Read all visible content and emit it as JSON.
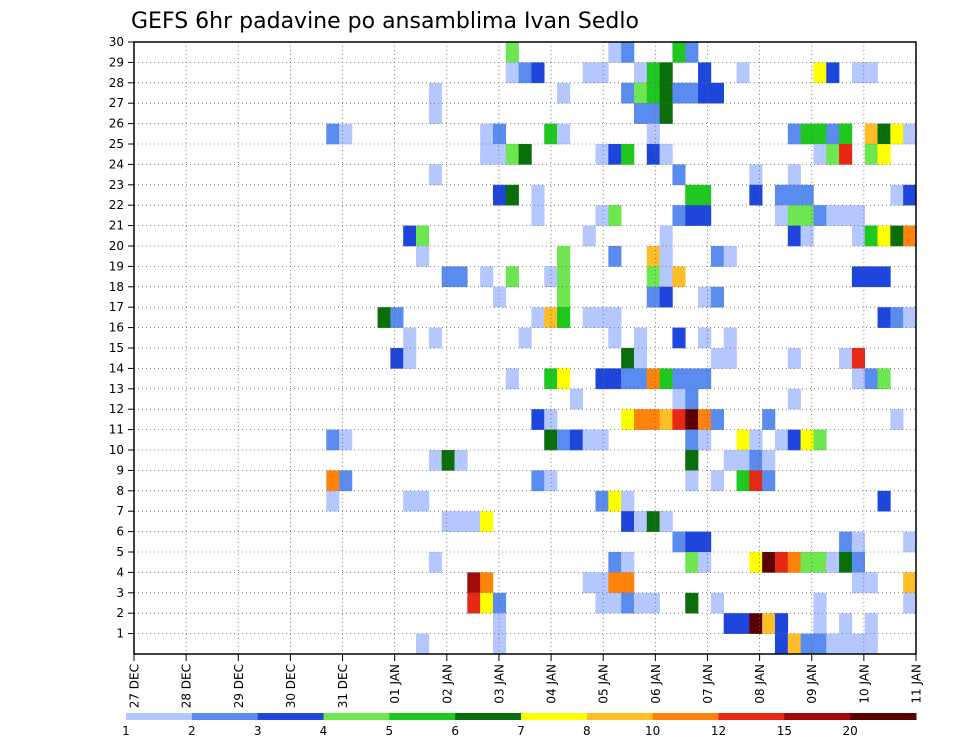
{
  "chart_data": {
    "type": "heatmap",
    "title": "GEFS 6hr padavine po ansamblima Ivan Sedlo",
    "xlabel": "",
    "ylabel": "",
    "x_ticks": [
      "27 DEC",
      "28 DEC",
      "29 DEC",
      "30 DEC",
      "31 DEC",
      "01 JAN",
      "02 JAN",
      "03 JAN",
      "04 JAN",
      "05 JAN",
      "06 JAN",
      "07 JAN",
      "08 JAN",
      "09 JAN",
      "10 JAN",
      "11 JAN"
    ],
    "y_ticks": [
      1,
      2,
      3,
      4,
      5,
      6,
      7,
      8,
      9,
      10,
      11,
      12,
      13,
      14,
      15,
      16,
      17,
      18,
      19,
      20,
      21,
      22,
      23,
      24,
      25,
      26,
      27,
      28,
      29,
      30
    ],
    "ylim": [
      0,
      30
    ],
    "x_steps": 61,
    "grid": true,
    "colorbar": {
      "labels": [
        "1",
        "2",
        "3",
        "4",
        "5",
        "6",
        "7",
        "8",
        "10",
        "12",
        "15",
        "20"
      ],
      "colors": [
        "#b4c8ff",
        "#5a8cf0",
        "#1e46dc",
        "#6ee650",
        "#1ec81e",
        "#0a6e0a",
        "#ffff00",
        "#ffbe28",
        "#ff820a",
        "#e62814",
        "#a00a0a",
        "#5a0000"
      ]
    },
    "cells": [
      [
        30,
        29,
        4
      ],
      [
        30,
        37,
        1
      ],
      [
        30,
        38,
        2
      ],
      [
        30,
        42,
        5
      ],
      [
        30,
        43,
        2
      ],
      [
        29,
        29,
        1
      ],
      [
        29,
        30,
        2
      ],
      [
        29,
        31,
        3
      ],
      [
        29,
        35,
        1
      ],
      [
        29,
        36,
        1
      ],
      [
        29,
        39,
        1
      ],
      [
        29,
        40,
        5
      ],
      [
        29,
        41,
        6
      ],
      [
        29,
        44,
        3
      ],
      [
        29,
        47,
        1
      ],
      [
        29,
        53,
        7
      ],
      [
        29,
        54,
        3
      ],
      [
        29,
        56,
        1
      ],
      [
        29,
        57,
        1
      ],
      [
        28,
        23,
        1
      ],
      [
        28,
        33,
        1
      ],
      [
        28,
        38,
        2
      ],
      [
        28,
        39,
        4
      ],
      [
        28,
        40,
        5
      ],
      [
        28,
        41,
        6
      ],
      [
        28,
        42,
        2
      ],
      [
        28,
        43,
        2
      ],
      [
        28,
        44,
        3
      ],
      [
        28,
        45,
        3
      ],
      [
        27,
        23,
        1
      ],
      [
        27,
        39,
        2
      ],
      [
        27,
        40,
        2
      ],
      [
        27,
        41,
        6
      ],
      [
        26,
        15,
        2
      ],
      [
        26,
        16,
        1
      ],
      [
        26,
        27,
        1
      ],
      [
        26,
        28,
        2
      ],
      [
        26,
        32,
        5
      ],
      [
        26,
        33,
        1
      ],
      [
        26,
        40,
        1
      ],
      [
        26,
        51,
        2
      ],
      [
        26,
        52,
        5
      ],
      [
        26,
        53,
        5
      ],
      [
        26,
        54,
        2
      ],
      [
        26,
        55,
        5
      ],
      [
        26,
        57,
        8
      ],
      [
        26,
        58,
        6
      ],
      [
        26,
        59,
        7
      ],
      [
        26,
        60,
        1
      ],
      [
        25,
        27,
        1
      ],
      [
        25,
        28,
        1
      ],
      [
        25,
        29,
        4
      ],
      [
        25,
        30,
        6
      ],
      [
        25,
        36,
        1
      ],
      [
        25,
        37,
        3
      ],
      [
        25,
        38,
        5
      ],
      [
        25,
        40,
        3
      ],
      [
        25,
        41,
        1
      ],
      [
        25,
        53,
        1
      ],
      [
        25,
        54,
        4
      ],
      [
        25,
        55,
        10
      ],
      [
        25,
        57,
        4
      ],
      [
        25,
        58,
        7
      ],
      [
        24,
        23,
        1
      ],
      [
        24,
        42,
        2
      ],
      [
        24,
        48,
        1
      ],
      [
        24,
        51,
        1
      ],
      [
        23,
        28,
        3
      ],
      [
        23,
        29,
        6
      ],
      [
        23,
        31,
        1
      ],
      [
        23,
        43,
        5
      ],
      [
        23,
        44,
        5
      ],
      [
        23,
        48,
        3
      ],
      [
        23,
        50,
        2
      ],
      [
        23,
        51,
        2
      ],
      [
        23,
        52,
        2
      ],
      [
        23,
        59,
        1
      ],
      [
        23,
        60,
        3
      ],
      [
        22,
        31,
        1
      ],
      [
        22,
        36,
        1
      ],
      [
        22,
        37,
        4
      ],
      [
        22,
        42,
        2
      ],
      [
        22,
        43,
        3
      ],
      [
        22,
        44,
        3
      ],
      [
        22,
        50,
        1
      ],
      [
        22,
        51,
        4
      ],
      [
        22,
        52,
        4
      ],
      [
        22,
        53,
        2
      ],
      [
        22,
        54,
        1
      ],
      [
        22,
        55,
        1
      ],
      [
        22,
        56,
        1
      ],
      [
        21,
        21,
        3
      ],
      [
        21,
        22,
        4
      ],
      [
        21,
        35,
        1
      ],
      [
        21,
        41,
        1
      ],
      [
        21,
        51,
        3
      ],
      [
        21,
        52,
        1
      ],
      [
        21,
        56,
        1
      ],
      [
        21,
        57,
        5
      ],
      [
        21,
        58,
        7
      ],
      [
        21,
        59,
        6
      ],
      [
        21,
        60,
        9
      ],
      [
        20,
        22,
        1
      ],
      [
        20,
        33,
        4
      ],
      [
        20,
        37,
        2
      ],
      [
        20,
        40,
        8
      ],
      [
        20,
        41,
        1
      ],
      [
        20,
        45,
        2
      ],
      [
        20,
        46,
        1
      ],
      [
        19,
        24,
        2
      ],
      [
        19,
        25,
        2
      ],
      [
        19,
        27,
        1
      ],
      [
        19,
        29,
        4
      ],
      [
        19,
        32,
        1
      ],
      [
        19,
        33,
        4
      ],
      [
        19,
        40,
        4
      ],
      [
        19,
        41,
        1
      ],
      [
        19,
        42,
        8
      ],
      [
        19,
        56,
        3
      ],
      [
        19,
        57,
        3
      ],
      [
        19,
        58,
        3
      ],
      [
        18,
        28,
        1
      ],
      [
        18,
        33,
        4
      ],
      [
        18,
        40,
        2
      ],
      [
        18,
        41,
        3
      ],
      [
        18,
        44,
        1
      ],
      [
        18,
        45,
        2
      ],
      [
        17,
        19,
        6
      ],
      [
        17,
        20,
        2
      ],
      [
        17,
        31,
        1
      ],
      [
        17,
        32,
        8
      ],
      [
        17,
        33,
        5
      ],
      [
        17,
        35,
        1
      ],
      [
        17,
        36,
        1
      ],
      [
        17,
        37,
        1
      ],
      [
        17,
        58,
        3
      ],
      [
        17,
        59,
        2
      ],
      [
        17,
        60,
        1
      ],
      [
        16,
        21,
        1
      ],
      [
        16,
        23,
        1
      ],
      [
        16,
        30,
        1
      ],
      [
        16,
        37,
        1
      ],
      [
        16,
        39,
        1
      ],
      [
        16,
        42,
        3
      ],
      [
        16,
        44,
        1
      ],
      [
        16,
        46,
        1
      ],
      [
        15,
        20,
        3
      ],
      [
        15,
        21,
        1
      ],
      [
        15,
        38,
        6
      ],
      [
        15,
        39,
        1
      ],
      [
        15,
        45,
        1
      ],
      [
        15,
        46,
        1
      ],
      [
        15,
        51,
        1
      ],
      [
        15,
        55,
        1
      ],
      [
        15,
        56,
        10
      ],
      [
        14,
        29,
        1
      ],
      [
        14,
        32,
        5
      ],
      [
        14,
        33,
        7
      ],
      [
        14,
        36,
        3
      ],
      [
        14,
        37,
        3
      ],
      [
        14,
        38,
        2
      ],
      [
        14,
        39,
        2
      ],
      [
        14,
        40,
        9
      ],
      [
        14,
        41,
        5
      ],
      [
        14,
        42,
        2
      ],
      [
        14,
        43,
        2
      ],
      [
        14,
        44,
        2
      ],
      [
        14,
        56,
        1
      ],
      [
        14,
        57,
        2
      ],
      [
        14,
        58,
        4
      ],
      [
        13,
        34,
        1
      ],
      [
        13,
        42,
        1
      ],
      [
        13,
        43,
        2
      ],
      [
        13,
        51,
        1
      ],
      [
        12,
        31,
        3
      ],
      [
        12,
        32,
        1
      ],
      [
        12,
        38,
        7
      ],
      [
        12,
        39,
        9
      ],
      [
        12,
        40,
        9
      ],
      [
        12,
        41,
        8
      ],
      [
        12,
        42,
        10
      ],
      [
        12,
        43,
        12
      ],
      [
        12,
        44,
        9
      ],
      [
        12,
        45,
        2
      ],
      [
        12,
        49,
        2
      ],
      [
        12,
        59,
        1
      ],
      [
        11,
        15,
        2
      ],
      [
        11,
        16,
        1
      ],
      [
        11,
        32,
        6
      ],
      [
        11,
        33,
        2
      ],
      [
        11,
        34,
        3
      ],
      [
        11,
        35,
        1
      ],
      [
        11,
        36,
        1
      ],
      [
        11,
        43,
        2
      ],
      [
        11,
        44,
        1
      ],
      [
        11,
        47,
        7
      ],
      [
        11,
        48,
        1
      ],
      [
        11,
        50,
        1
      ],
      [
        11,
        51,
        3
      ],
      [
        11,
        52,
        7
      ],
      [
        11,
        53,
        4
      ],
      [
        10,
        23,
        1
      ],
      [
        10,
        24,
        6
      ],
      [
        10,
        25,
        1
      ],
      [
        10,
        43,
        6
      ],
      [
        10,
        46,
        1
      ],
      [
        10,
        47,
        1
      ],
      [
        10,
        48,
        2
      ],
      [
        10,
        49,
        1
      ],
      [
        9,
        15,
        9
      ],
      [
        9,
        16,
        2
      ],
      [
        9,
        31,
        2
      ],
      [
        9,
        32,
        1
      ],
      [
        9,
        43,
        1
      ],
      [
        9,
        45,
        1
      ],
      [
        9,
        47,
        5
      ],
      [
        9,
        48,
        10
      ],
      [
        9,
        49,
        2
      ],
      [
        8,
        15,
        1
      ],
      [
        8,
        21,
        1
      ],
      [
        8,
        22,
        1
      ],
      [
        8,
        36,
        2
      ],
      [
        8,
        37,
        7
      ],
      [
        8,
        38,
        1
      ],
      [
        8,
        58,
        3
      ],
      [
        7,
        24,
        1
      ],
      [
        7,
        25,
        1
      ],
      [
        7,
        26,
        1
      ],
      [
        7,
        27,
        7
      ],
      [
        7,
        38,
        3
      ],
      [
        7,
        39,
        1
      ],
      [
        7,
        40,
        6
      ],
      [
        7,
        41,
        1
      ],
      [
        6,
        42,
        2
      ],
      [
        6,
        43,
        3
      ],
      [
        6,
        44,
        3
      ],
      [
        6,
        55,
        2
      ],
      [
        6,
        56,
        1
      ],
      [
        6,
        60,
        1
      ],
      [
        5,
        23,
        1
      ],
      [
        5,
        37,
        2
      ],
      [
        5,
        38,
        1
      ],
      [
        5,
        43,
        4
      ],
      [
        5,
        44,
        1
      ],
      [
        5,
        48,
        7
      ],
      [
        5,
        49,
        12
      ],
      [
        5,
        50,
        10
      ],
      [
        5,
        51,
        9
      ],
      [
        5,
        52,
        4
      ],
      [
        5,
        53,
        4
      ],
      [
        5,
        54,
        1
      ],
      [
        5,
        55,
        6
      ],
      [
        5,
        56,
        2
      ],
      [
        4,
        26,
        11
      ],
      [
        4,
        27,
        9
      ],
      [
        4,
        35,
        1
      ],
      [
        4,
        36,
        1
      ],
      [
        4,
        37,
        9
      ],
      [
        4,
        38,
        9
      ],
      [
        4,
        56,
        1
      ],
      [
        4,
        57,
        1
      ],
      [
        4,
        60,
        8
      ],
      [
        3,
        26,
        10
      ],
      [
        3,
        27,
        7
      ],
      [
        3,
        28,
        2
      ],
      [
        3,
        36,
        1
      ],
      [
        3,
        37,
        1
      ],
      [
        3,
        38,
        2
      ],
      [
        3,
        39,
        1
      ],
      [
        3,
        40,
        1
      ],
      [
        3,
        43,
        6
      ],
      [
        3,
        45,
        1
      ],
      [
        3,
        53,
        1
      ],
      [
        3,
        60,
        1
      ],
      [
        2,
        28,
        1
      ],
      [
        2,
        46,
        3
      ],
      [
        2,
        47,
        3
      ],
      [
        2,
        48,
        12
      ],
      [
        2,
        49,
        8
      ],
      [
        2,
        50,
        3
      ],
      [
        2,
        53,
        1
      ],
      [
        2,
        55,
        1
      ],
      [
        2,
        57,
        1
      ],
      [
        1,
        22,
        1
      ],
      [
        1,
        28,
        1
      ],
      [
        1,
        50,
        3
      ],
      [
        1,
        51,
        8
      ],
      [
        1,
        52,
        2
      ],
      [
        1,
        53,
        2
      ],
      [
        1,
        54,
        1
      ],
      [
        1,
        55,
        1
      ],
      [
        1,
        56,
        1
      ],
      [
        1,
        57,
        1
      ]
    ]
  }
}
